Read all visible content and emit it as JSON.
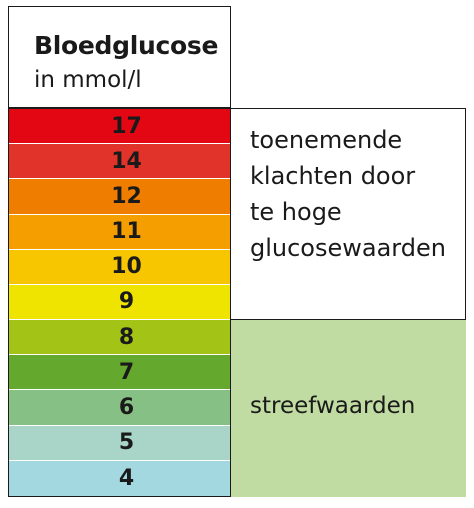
{
  "header": {
    "title": "Bloedglucose",
    "unit": "in mmol/l"
  },
  "levels": [
    {
      "value": "17",
      "color": "#e30613"
    },
    {
      "value": "14",
      "color": "#e2332a"
    },
    {
      "value": "12",
      "color": "#ee7d00"
    },
    {
      "value": "11",
      "color": "#f59e00"
    },
    {
      "value": "10",
      "color": "#f7c600"
    },
    {
      "value": "9",
      "color": "#efe300"
    },
    {
      "value": "8",
      "color": "#a3c417"
    },
    {
      "value": "7",
      "color": "#65a82e"
    },
    {
      "value": "6",
      "color": "#86c084"
    },
    {
      "value": "5",
      "color": "#a9d5c8"
    },
    {
      "value": "4",
      "color": "#a3d8e0"
    }
  ],
  "zones": {
    "high": {
      "lines": [
        "toenemende",
        "klachten door",
        "te hoge",
        "glucosewaarden"
      ]
    },
    "target": {
      "label": "streefwaarden",
      "color": "#c1dca2"
    }
  }
}
